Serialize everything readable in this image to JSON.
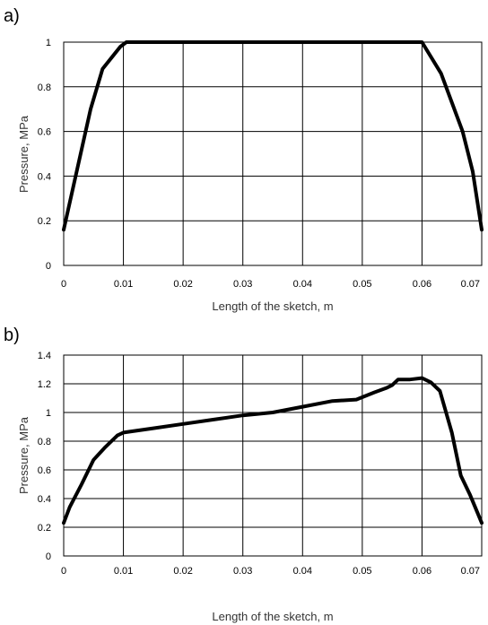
{
  "chart_data": [
    {
      "panel": "a)",
      "type": "line",
      "xlabel": "Length of the sketch, m",
      "ylabel": "Pressure, MPa",
      "xlim": [
        0,
        0.07
      ],
      "ylim": [
        0,
        1
      ],
      "xticks": [
        "0",
        "0.01",
        "0.02",
        "0.03",
        "0.04",
        "0.05",
        "0.06",
        "0.07"
      ],
      "yticks": [
        "0",
        "0.2",
        "0.4",
        "0.6",
        "0.8",
        "1"
      ],
      "grid": true,
      "series": [
        {
          "x": [
            0,
            0.0045,
            0.0065,
            0.0095,
            0.0105,
            0.06,
            0.0632,
            0.0668,
            0.0685,
            0.07
          ],
          "y": [
            0.16,
            0.7,
            0.88,
            0.98,
            1.0,
            1.0,
            0.86,
            0.6,
            0.42,
            0.16
          ]
        }
      ]
    },
    {
      "panel": "b)",
      "type": "line",
      "xlabel": "Length of the sketch, m",
      "ylabel": "Pressure, MPa",
      "xlim": [
        0,
        0.07
      ],
      "ylim": [
        0,
        1.4
      ],
      "xticks": [
        "0",
        "0.01",
        "0.02",
        "0.03",
        "0.04",
        "0.05",
        "0.06",
        "0.07"
      ],
      "yticks": [
        "0",
        "0.2",
        "0.4",
        "0.6",
        "0.8",
        "1",
        "1.2",
        "1.4"
      ],
      "grid": true,
      "series": [
        {
          "x": [
            0,
            0.001,
            0.003,
            0.005,
            0.007,
            0.009,
            0.01,
            0.015,
            0.02,
            0.025,
            0.03,
            0.035,
            0.04,
            0.045,
            0.049,
            0.052,
            0.054,
            0.055,
            0.056,
            0.058,
            0.06,
            0.0615,
            0.063,
            0.065,
            0.0665,
            0.068,
            0.0695,
            0.07
          ],
          "y": [
            0.23,
            0.34,
            0.5,
            0.67,
            0.76,
            0.84,
            0.86,
            0.89,
            0.92,
            0.95,
            0.98,
            1.0,
            1.04,
            1.08,
            1.09,
            1.14,
            1.17,
            1.19,
            1.23,
            1.23,
            1.24,
            1.21,
            1.15,
            0.86,
            0.56,
            0.43,
            0.28,
            0.23
          ]
        }
      ]
    }
  ]
}
